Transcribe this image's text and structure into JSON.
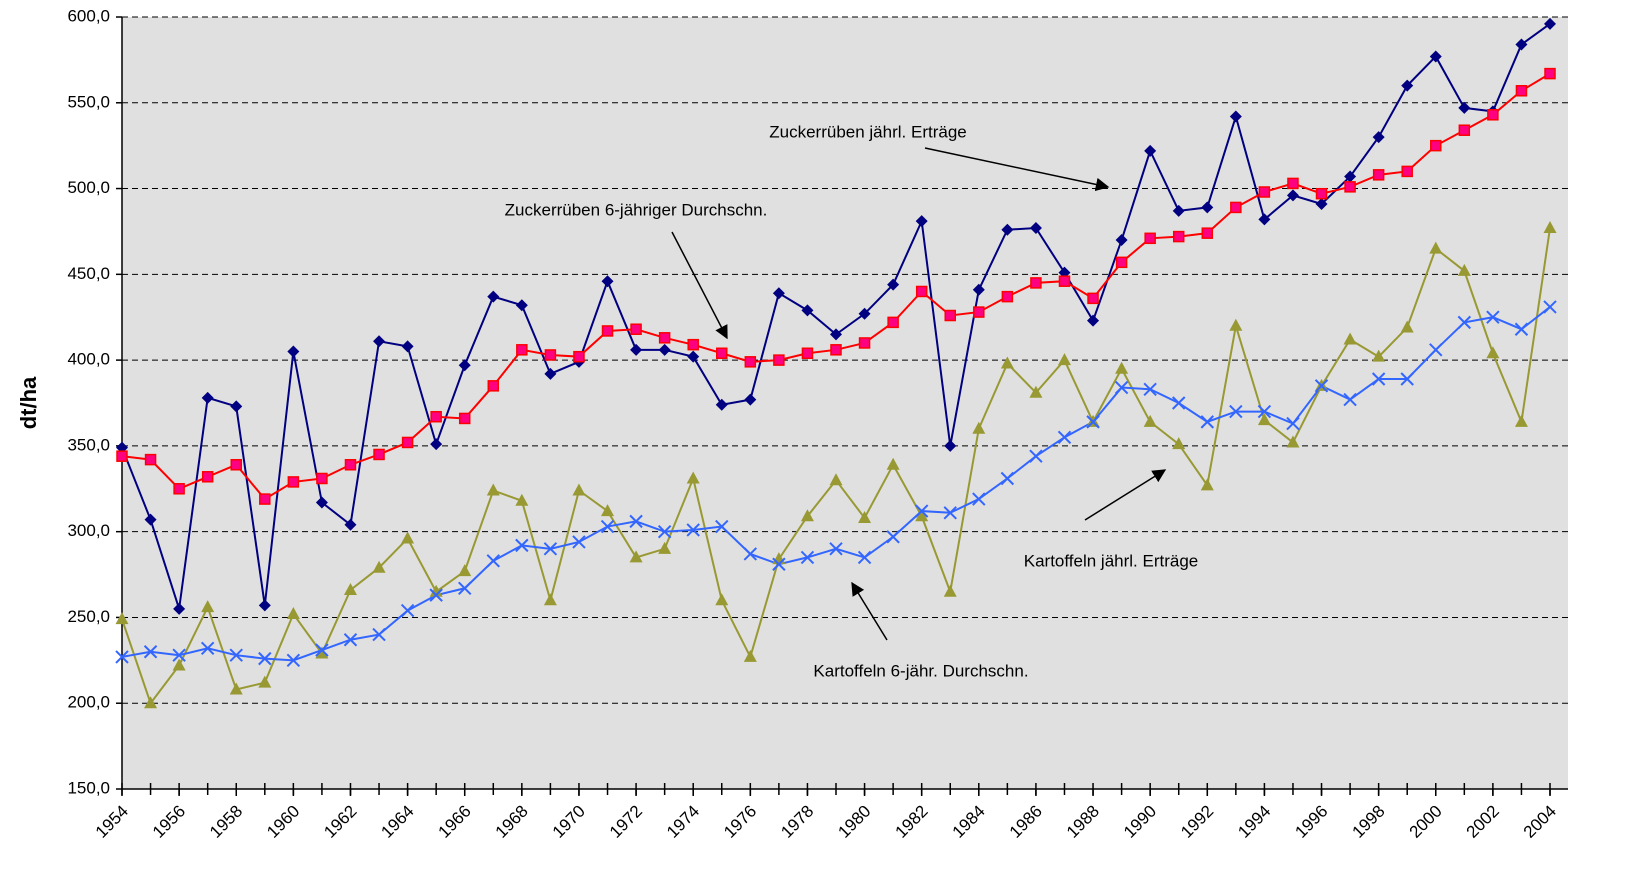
{
  "chart_data": {
    "type": "line",
    "y_label": "dt/ha",
    "x": [
      1954,
      1955,
      1956,
      1957,
      1958,
      1959,
      1960,
      1961,
      1962,
      1963,
      1964,
      1965,
      1966,
      1967,
      1968,
      1969,
      1970,
      1971,
      1972,
      1973,
      1974,
      1975,
      1976,
      1977,
      1978,
      1979,
      1980,
      1981,
      1982,
      1983,
      1984,
      1985,
      1986,
      1987,
      1988,
      1989,
      1990,
      1991,
      1992,
      1993,
      1994,
      1995,
      1996,
      1997,
      1998,
      1999,
      2000,
      2001,
      2002,
      2003,
      2004
    ],
    "series": [
      {
        "color": "#000080",
        "marker": "diamond",
        "marker_fill": "#000080",
        "values": [
          349,
          307,
          255,
          378,
          373,
          257,
          405,
          317,
          304,
          411,
          408,
          351,
          397,
          437,
          432,
          392,
          399,
          446,
          406,
          406,
          402,
          374,
          377,
          439,
          429,
          415,
          427,
          444,
          481,
          350,
          441,
          476,
          477,
          451,
          423,
          470,
          522,
          487,
          489,
          542,
          482,
          496,
          491,
          507,
          530,
          560,
          577,
          547,
          545,
          584,
          596
        ]
      },
      {
        "color": "#ff0000",
        "marker": "square",
        "marker_fill": "#ff0080",
        "values": [
          344,
          342,
          325,
          332,
          339,
          319,
          329,
          331,
          339,
          345,
          352,
          367,
          366,
          385,
          406,
          403,
          402,
          417,
          418,
          413,
          409,
          404,
          399,
          400,
          404,
          406,
          410,
          422,
          440,
          426,
          428,
          437,
          445,
          446,
          436,
          457,
          471,
          472,
          474,
          489,
          498,
          503,
          497,
          501,
          508,
          510,
          525,
          534,
          543,
          557,
          567
        ]
      },
      {
        "color": "#999933",
        "marker": "triangle",
        "marker_fill": "#999933",
        "values": [
          249,
          200,
          222,
          256,
          208,
          212,
          252,
          229,
          266,
          279,
          296,
          265,
          277,
          324,
          318,
          260,
          324,
          312,
          285,
          290,
          331,
          260,
          227,
          284,
          309,
          330,
          308,
          339,
          309,
          265,
          360,
          398,
          381,
          400,
          364,
          395,
          364,
          351,
          327,
          420,
          365,
          352,
          385,
          412,
          402,
          419,
          465,
          452,
          404,
          364,
          477
        ]
      },
      {
        "color": "#3366ff",
        "marker": "x",
        "marker_fill": "none",
        "values": [
          227,
          230,
          228,
          232,
          228,
          226,
          225,
          231,
          237,
          240,
          254,
          263,
          267,
          283,
          292,
          290,
          294,
          303,
          306,
          300,
          301,
          303,
          287,
          281,
          285,
          290,
          285,
          297,
          312,
          311,
          319,
          331,
          344,
          355,
          364,
          384,
          383,
          375,
          364,
          370,
          370,
          363,
          385,
          377,
          389,
          389,
          406,
          422,
          425,
          418,
          431
        ]
      }
    ],
    "annotations": [
      {
        "text": "Zuckerrüben jährl. Erträge"
      },
      {
        "text": "Zuckerrüben 6-jähriger Durchschn."
      },
      {
        "text": "Kartoffeln jährl. Erträge"
      },
      {
        "text": "Kartoffeln 6-jähr. Durchschn."
      }
    ],
    "xlim": [
      1954,
      2004.63
    ],
    "xticks": [
      1954,
      1956,
      1958,
      1960,
      1962,
      1964,
      1966,
      1968,
      1970,
      1972,
      1974,
      1976,
      1978,
      1980,
      1982,
      1984,
      1986,
      1988,
      1990,
      1992,
      1994,
      1996,
      1998,
      2000,
      2002,
      2004
    ],
    "ylim": [
      150,
      600
    ],
    "yticks": [
      {
        "value": 150,
        "label": "150,0"
      },
      {
        "value": 200,
        "label": "200,0"
      },
      {
        "value": 250,
        "label": "250,0"
      },
      {
        "value": 300,
        "label": "300,0"
      },
      {
        "value": 350,
        "label": "350,0"
      },
      {
        "value": 400,
        "label": "400,0"
      },
      {
        "value": 450,
        "label": "450,0"
      },
      {
        "value": 500,
        "label": "500,0"
      },
      {
        "value": 550,
        "label": "550,0"
      },
      {
        "value": 600,
        "label": "600,0"
      }
    ],
    "grid": true,
    "plot_background": "#e0e0e0"
  }
}
